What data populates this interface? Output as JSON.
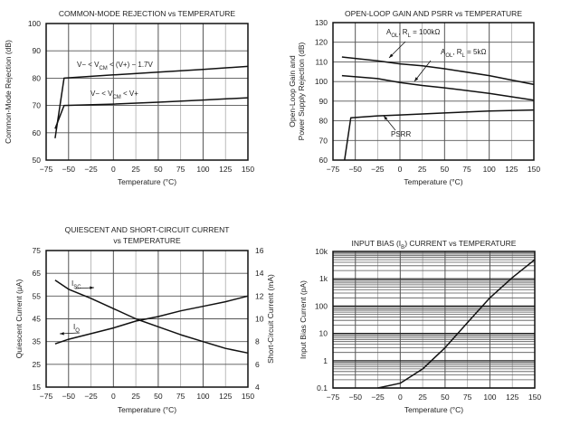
{
  "chart_data": [
    {
      "type": "line",
      "title": [
        {
          "t": "COMMON-MODE REJECTION vs TEMPERATURE"
        }
      ],
      "xlabel": "Temperature (°C)",
      "ylabel": [
        "Common-Mode Rejection (dB)"
      ],
      "xlim": [
        -75,
        150
      ],
      "ylim": [
        50,
        100
      ],
      "xticks": [
        -75,
        -50,
        -25,
        0,
        25,
        50,
        75,
        100,
        125,
        150
      ],
      "yticks": [
        50,
        60,
        70,
        80,
        90,
        100
      ],
      "grid": true,
      "series": [
        {
          "name": "V− < VCM < (V+) − 1.7V",
          "label": [
            {
              "t": "V− < V"
            },
            {
              "t": "CM",
              "sub": true
            },
            {
              "t": " < (V+) − 1.7V"
            }
          ],
          "x": [
            -65,
            -55,
            0,
            50,
            100,
            150
          ],
          "y": [
            58,
            80,
            81.2,
            82.2,
            83.2,
            84.3
          ]
        },
        {
          "name": "V− < VCM < V+",
          "label": [
            {
              "t": "V− < V"
            },
            {
              "t": "CM",
              "sub": true
            },
            {
              "t": " < V+"
            }
          ],
          "x": [
            -65,
            -55,
            0,
            50,
            100,
            150
          ],
          "y": [
            61.5,
            70,
            70.5,
            71.2,
            72,
            72.8
          ]
        }
      ]
    },
    {
      "type": "line",
      "title": [
        {
          "t": "OPEN-LOOP GAIN AND PSRR vs TEMPERATURE"
        }
      ],
      "xlabel": "Temperature (°C)",
      "ylabel": [
        "Open-Loop Gain and",
        "Power Supply Rejection (dB)"
      ],
      "xlim": [
        -75,
        150
      ],
      "ylim": [
        60,
        130
      ],
      "xticks": [
        -75,
        -50,
        -25,
        0,
        25,
        50,
        75,
        100,
        125,
        150
      ],
      "yticks": [
        60,
        70,
        80,
        90,
        100,
        110,
        120,
        130
      ],
      "grid": true,
      "series": [
        {
          "name": "AOL, RL = 100kΩ",
          "label": [
            {
              "t": "A"
            },
            {
              "t": "OL",
              "sub": true
            },
            {
              "t": ", R"
            },
            {
              "t": "L",
              "sub": true
            },
            {
              "t": " = 100kΩ"
            }
          ],
          "x": [
            -65,
            -25,
            0,
            25,
            50,
            100,
            150
          ],
          "y": [
            112.5,
            110.5,
            109,
            108,
            106.5,
            103,
            98.5
          ]
        },
        {
          "name": "AOL, RL = 5kΩ",
          "label": [
            {
              "t": "A"
            },
            {
              "t": "OL",
              "sub": true
            },
            {
              "t": ", R"
            },
            {
              "t": "L",
              "sub": true
            },
            {
              "t": " = 5kΩ"
            }
          ],
          "x": [
            -65,
            -25,
            0,
            25,
            50,
            100,
            150
          ],
          "y": [
            103,
            101.5,
            99.5,
            98,
            96.8,
            94,
            90.5
          ]
        },
        {
          "name": "PSRR",
          "label": [
            {
              "t": "PSRR"
            }
          ],
          "x": [
            -62,
            -55,
            -25,
            0,
            50,
            100,
            150
          ],
          "y": [
            60,
            81.5,
            82.5,
            83,
            84,
            85,
            85.5
          ]
        }
      ]
    },
    {
      "type": "line",
      "title": [
        {
          "t": "QUIESCENT AND SHORT-CIRCUIT CURRENT"
        }
      ],
      "title2": "vs TEMPERATURE",
      "xlabel": "Temperature (°C)",
      "ylabel": [
        "Quiescent Current (μA)"
      ],
      "y2label": "Short-Circuit Current (mA)",
      "xlim": [
        -75,
        150
      ],
      "ylim": [
        15,
        75
      ],
      "y2lim": [
        4,
        16
      ],
      "xticks": [
        -75,
        -50,
        -25,
        0,
        25,
        50,
        75,
        100,
        125,
        150
      ],
      "yticks": [
        15,
        25,
        35,
        45,
        55,
        65,
        75
      ],
      "y2ticks": [
        4,
        6,
        8,
        10,
        12,
        14,
        16
      ],
      "grid": true,
      "series": [
        {
          "name": "ISC",
          "axis": "right",
          "label": [
            {
              "t": "I"
            },
            {
              "t": "SC",
              "sub": true
            }
          ],
          "x": [
            -65,
            -50,
            -25,
            0,
            25,
            50,
            75,
            100,
            125,
            150
          ],
          "y": [
            13.4,
            12.6,
            11.8,
            10.9,
            10,
            9.3,
            8.6,
            8,
            7.4,
            7
          ]
        },
        {
          "name": "IQ",
          "axis": "left",
          "label": [
            {
              "t": "I"
            },
            {
              "t": "Q",
              "sub": true
            }
          ],
          "x": [
            -65,
            -50,
            -25,
            0,
            25,
            50,
            75,
            100,
            125,
            150
          ],
          "y": [
            34,
            36,
            38.5,
            41,
            44,
            46,
            48.5,
            50.5,
            52.5,
            55
          ]
        }
      ]
    },
    {
      "type": "line",
      "title": [
        {
          "t": "INPUT BIAS (I"
        },
        {
          "t": "B",
          "sub": true
        },
        {
          "t": ") CURRENT vs TEMPERATURE"
        }
      ],
      "xlabel": "Temperature (°C)",
      "ylabel": [
        "Input Bias Current (pA)"
      ],
      "xlim": [
        -75,
        150
      ],
      "ylim": [
        0.1,
        10000
      ],
      "yscale": "log",
      "xticks": [
        -75,
        -50,
        -25,
        0,
        25,
        50,
        75,
        100,
        125,
        150
      ],
      "yticks": [
        0.1,
        1,
        10,
        100,
        1000,
        10000
      ],
      "ytick_labels": [
        "0.1",
        "1",
        "10",
        "100",
        "1k",
        "10k"
      ],
      "grid": true,
      "series": [
        {
          "name": "IB",
          "x": [
            -25,
            0,
            25,
            50,
            75,
            100,
            125,
            150
          ],
          "y": [
            0.1,
            0.15,
            0.5,
            3,
            25,
            200,
            1100,
            5000
          ]
        }
      ]
    }
  ]
}
